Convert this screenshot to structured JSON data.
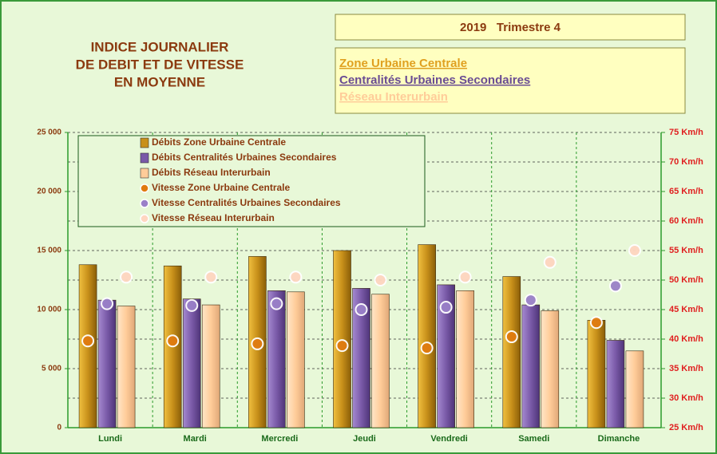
{
  "chart_data": {
    "type": "bar",
    "title": [
      "INDICE JOURNALIER",
      "DE DEBIT ET DE VITESSE",
      "EN MOYENNE"
    ],
    "subtitle": "2019   Trimestre 4",
    "zones": [
      {
        "name": "Zone Urbaine Centrale",
        "color": "#e0a020"
      },
      {
        "name": "Centralités Urbaines Secondaires",
        "color": "#6a4c93"
      },
      {
        "name": "Réseau Interurbain",
        "color": "#ffcc99"
      }
    ],
    "categories": [
      "Lundi",
      "Mardi",
      "Mercredi",
      "Jeudi",
      "Vendredi",
      "Samedi",
      "Dimanche"
    ],
    "series": [
      {
        "name": "Débits Zone Urbaine Centrale",
        "kind": "bar",
        "color": "#c8901a",
        "values": [
          13800,
          13700,
          14500,
          15000,
          15500,
          12800,
          9100
        ]
      },
      {
        "name": "Débits Centralités Urbaines Secondaires",
        "kind": "bar",
        "color": "#7a5aa8",
        "values": [
          10800,
          10900,
          11600,
          11800,
          12100,
          10400,
          7400
        ]
      },
      {
        "name": "Débits Réseau Interurbain",
        "kind": "bar",
        "color": "#ffcc99",
        "values": [
          10300,
          10400,
          11500,
          11300,
          11600,
          9900,
          6500
        ]
      },
      {
        "name": "Vitesse Zone Urbaine Centrale",
        "kind": "scatter",
        "axis": "y2",
        "color": "#e07b10",
        "values": [
          39.7,
          39.7,
          39.2,
          38.9,
          38.5,
          40.4,
          42.8
        ]
      },
      {
        "name": "Vitesse Centralités Urbaines Secondaires",
        "kind": "scatter",
        "axis": "y2",
        "color": "#9a80c8",
        "values": [
          46,
          45.7,
          46,
          45,
          45.4,
          46.6,
          49
        ]
      },
      {
        "name": "Vitesse Réseau Interurbain",
        "kind": "scatter",
        "axis": "y2",
        "color": "#ffd6c0",
        "values": [
          50.5,
          50.5,
          50.5,
          50,
          50.5,
          53,
          55
        ]
      }
    ],
    "ylim": [
      0,
      25000
    ],
    "yticks": [
      0,
      {
        "value": 5000,
        "label": "5 000"
      },
      {
        "value": 10000,
        "label": "10 000"
      },
      {
        "value": 15000,
        "label": "15 000"
      },
      {
        "value": 20000,
        "label": "20 000"
      },
      {
        "value": 25000,
        "label": "25 000"
      }
    ],
    "y2lim": [
      25,
      75
    ],
    "y2ticks": [
      {
        "value": 25,
        "label": "25 Km/h"
      },
      {
        "value": 30,
        "label": "30 Km/h"
      },
      {
        "value": 35,
        "label": "35 Km/h"
      },
      {
        "value": 40,
        "label": "40 Km/h"
      },
      {
        "value": 45,
        "label": "45 Km/h"
      },
      {
        "value": 50,
        "label": "50 Km/h"
      },
      {
        "value": 55,
        "label": "55 Km/h"
      },
      {
        "value": 60,
        "label": "60 Km/h"
      },
      {
        "value": 65,
        "label": "65 Km/h"
      },
      {
        "value": 70,
        "label": "70 Km/h"
      },
      {
        "value": 75,
        "label": "75 Km/h"
      }
    ],
    "grid": true
  }
}
